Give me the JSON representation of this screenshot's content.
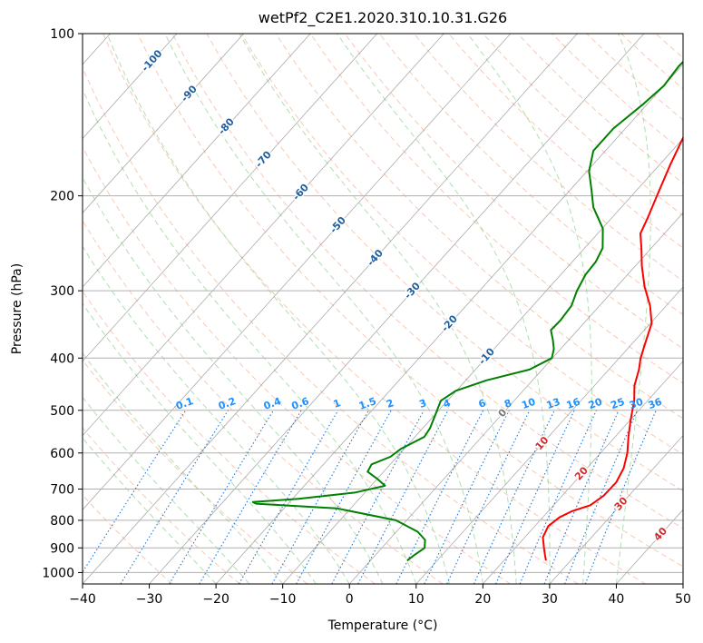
{
  "chart_data": {
    "type": "line",
    "title": "wetPf2_C2E1.2020.310.10.31.G26",
    "xlabel": "Temperature (°C)",
    "ylabel": "Pressure (hPa)",
    "xlim": [
      -40,
      50
    ],
    "ylim": [
      1050,
      100
    ],
    "y_scale": "log",
    "x_ticks": [
      -40,
      -30,
      -20,
      -10,
      0,
      10,
      20,
      30,
      40,
      50
    ],
    "y_ticks": [
      100,
      200,
      300,
      400,
      500,
      600,
      700,
      800,
      900,
      1000
    ],
    "grid": true,
    "series": [
      {
        "color": "#ff0000",
        "points": [
          [
            26.3,
            950
          ],
          [
            25.5,
            930
          ],
          [
            24.3,
            900
          ],
          [
            22.7,
            860
          ],
          [
            22.0,
            820
          ],
          [
            22.5,
            790
          ],
          [
            23.5,
            770
          ],
          [
            25.5,
            750
          ],
          [
            26.2,
            720
          ],
          [
            26.3,
            680
          ],
          [
            25.5,
            640
          ],
          [
            24.0,
            600
          ],
          [
            22.0,
            560
          ],
          [
            20.0,
            520
          ],
          [
            18.0,
            480
          ],
          [
            16.0,
            450
          ],
          [
            14.5,
            420
          ],
          [
            13.2,
            400
          ],
          [
            11.6,
            370
          ],
          [
            10.2,
            345
          ],
          [
            7.6,
            320
          ],
          [
            4.2,
            295
          ],
          [
            1.0,
            270
          ],
          [
            -1.5,
            250
          ],
          [
            -3.6,
            235
          ],
          [
            -4.6,
            220
          ],
          [
            -6.2,
            200
          ],
          [
            -8.4,
            175
          ],
          [
            -10.2,
            155
          ],
          [
            -11.6,
            140
          ],
          [
            -12.4,
            128
          ],
          [
            -12.2,
            118
          ],
          [
            -11.8,
            110
          ],
          [
            -12.1,
            105
          ],
          [
            -12.3,
            100
          ]
        ]
      },
      {
        "color": "#008000",
        "points": [
          [
            5.5,
            950
          ],
          [
            5.8,
            930
          ],
          [
            6.4,
            900
          ],
          [
            5.4,
            870
          ],
          [
            3.2,
            840
          ],
          [
            -1.6,
            800
          ],
          [
            -12.1,
            760
          ],
          [
            -24.8,
            745
          ],
          [
            -25.5,
            740
          ],
          [
            -19.1,
            730
          ],
          [
            -11.4,
            710
          ],
          [
            -7.9,
            690
          ],
          [
            -10.0,
            670
          ],
          [
            -12.4,
            650
          ],
          [
            -12.8,
            630
          ],
          [
            -11.0,
            610
          ],
          [
            -10.5,
            590
          ],
          [
            -8.6,
            560
          ],
          [
            -8.9,
            540
          ],
          [
            -9.9,
            510
          ],
          [
            -11.0,
            480
          ],
          [
            -10.1,
            460
          ],
          [
            -6.9,
            440
          ],
          [
            -1.9,
            420
          ],
          [
            -0.1,
            400
          ],
          [
            -1.0,
            385
          ],
          [
            -2.4,
            370
          ],
          [
            -4.0,
            355
          ],
          [
            -3.9,
            340
          ],
          [
            -4.2,
            320
          ],
          [
            -5.4,
            300
          ],
          [
            -6.3,
            280
          ],
          [
            -6.5,
            265
          ],
          [
            -7.3,
            250
          ],
          [
            -9.9,
            230
          ],
          [
            -14.2,
            210
          ],
          [
            -16.8,
            195
          ],
          [
            -19.7,
            180
          ],
          [
            -21.8,
            165
          ],
          [
            -21.8,
            150
          ],
          [
            -20.6,
            135
          ],
          [
            -20.0,
            125
          ],
          [
            -20.4,
            115
          ],
          [
            -20.2,
            108
          ],
          [
            -17.8,
            100
          ]
        ]
      }
    ],
    "isotherm_labels": [
      "-100",
      "-90",
      "-80",
      "-70",
      "-60",
      "-50",
      "-40",
      "-30",
      "-20",
      "-10",
      "0",
      "10",
      "20",
      "30",
      "40"
    ],
    "mixing_ratio_labels": [
      "0.1",
      "0.2",
      "0.4",
      "0.6",
      "1",
      "1.5",
      "2",
      "3",
      "4",
      "6",
      "8",
      "10",
      "13",
      "16",
      "20",
      "25",
      "30",
      "36"
    ],
    "colors": {
      "temperature": "#ff0000",
      "dewpoint": "#008000",
      "isotherm": "#888888",
      "dry_adiabat": "#f4a582",
      "moist_adiabat": "#8fd18f",
      "mixing_ratio": "#1f77d4",
      "isotherm_label_cold": "#1f5fa0",
      "isotherm_label_warm": "#d62728",
      "isotherm_label_zero": "#777777",
      "mixing_label": "#1e90ff"
    }
  }
}
